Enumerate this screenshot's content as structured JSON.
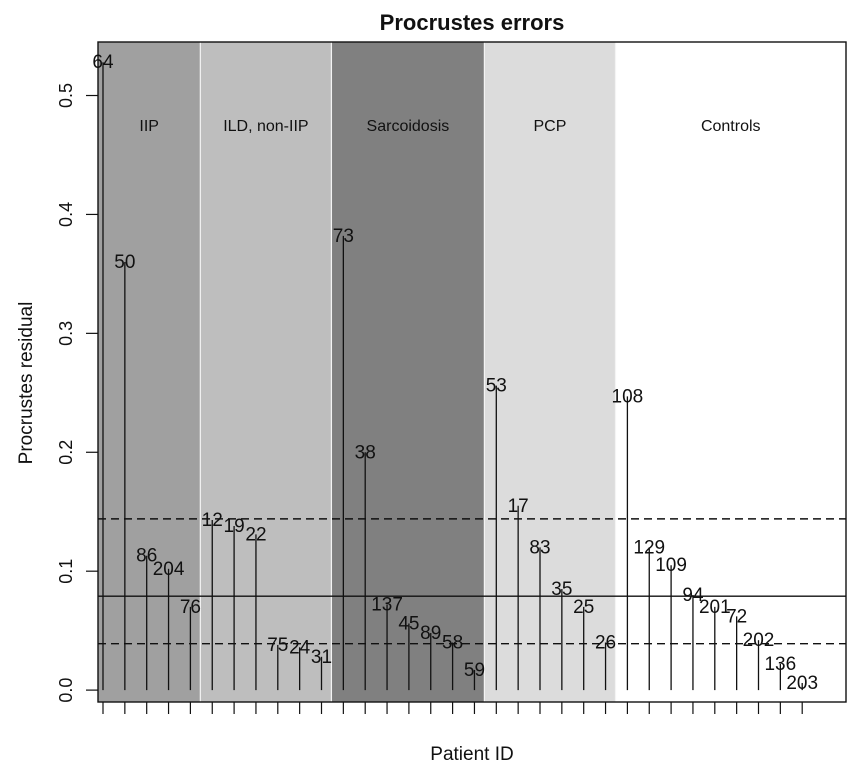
{
  "chart_data": {
    "type": "bar",
    "style": "vertical-lines",
    "title": "Procrustes errors",
    "xlabel": "Patient ID",
    "ylabel": "Procrustes residual",
    "ylim": [
      -0.01,
      0.545
    ],
    "yticks": [
      "0.0",
      "0.1",
      "0.2",
      "0.3",
      "0.4",
      "0.5"
    ],
    "categories": [
      "64",
      "50",
      "86",
      "204",
      "76",
      "12",
      "19",
      "22",
      "75",
      "24",
      "31",
      "73",
      "38",
      "137",
      "45",
      "89",
      "58",
      "59",
      "53",
      "17",
      "83",
      "35",
      "25",
      "26",
      "108",
      "129",
      "109",
      "94",
      "201",
      "72",
      "202",
      "136",
      "203"
    ],
    "values": [
      0.528,
      0.36,
      0.113,
      0.102,
      0.07,
      0.143,
      0.138,
      0.131,
      0.038,
      0.036,
      0.028,
      0.382,
      0.2,
      0.072,
      0.056,
      0.048,
      0.04,
      0.017,
      0.256,
      0.155,
      0.12,
      0.085,
      0.07,
      0.04,
      0.247,
      0.12,
      0.105,
      0.08,
      0.07,
      0.062,
      0.042,
      0.022,
      0.006
    ],
    "groups": [
      {
        "name": "IIP",
        "start": 0,
        "end": 4,
        "color": "#a0a0a0"
      },
      {
        "name": "ILD, non-IIP",
        "start": 5,
        "end": 10,
        "color": "#bebebe"
      },
      {
        "name": "Sarcoidosis",
        "start": 11,
        "end": 17,
        "color": "#808080"
      },
      {
        "name": "PCP",
        "start": 18,
        "end": 23,
        "color": "#dcdcdc"
      },
      {
        "name": "Controls",
        "start": 24,
        "end": 32,
        "color": "#ffffff"
      }
    ],
    "reference_lines": [
      {
        "value": 0.079,
        "style": "solid"
      },
      {
        "value": 0.144,
        "style": "dashed"
      },
      {
        "value": 0.039,
        "style": "dashed"
      }
    ],
    "grid": false,
    "legend": "none"
  }
}
